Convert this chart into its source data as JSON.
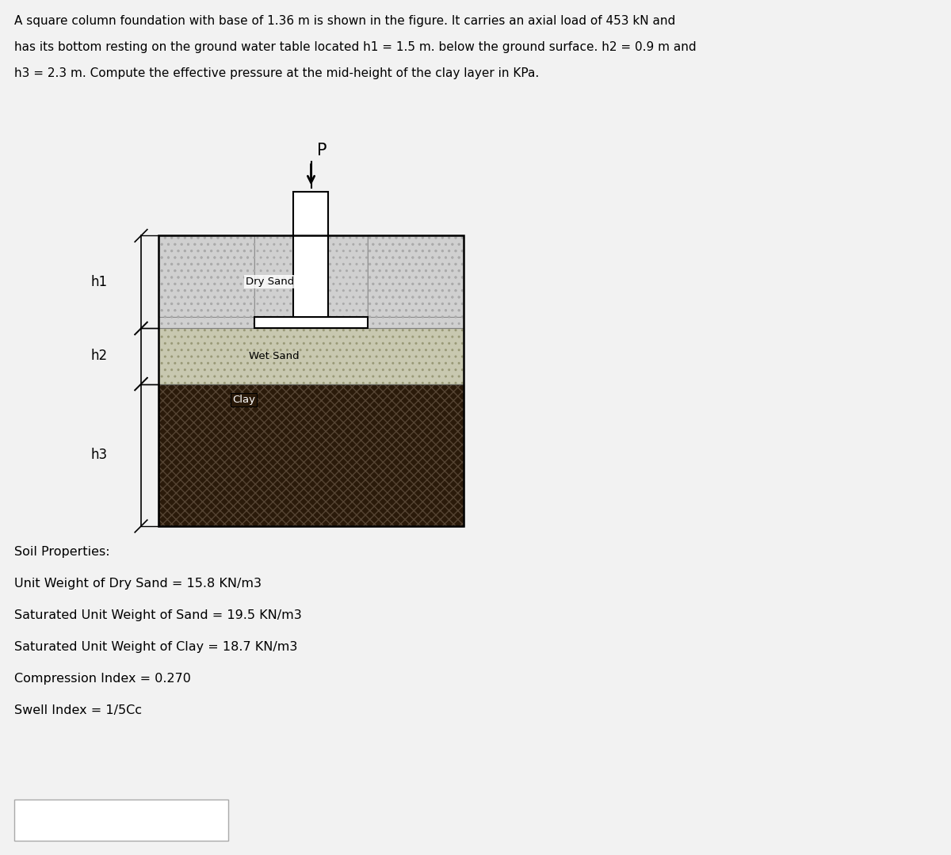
{
  "title_line1": "A square column foundation with base of 1.36 m is shown in the figure. It carries an axial load of 453 kN and",
  "title_line2": "has its bottom resting on the ground water table located h1 = 1.5 m. below the ground surface. h2 = 0.9 m and",
  "title_line3": "h3 = 2.3 m. Compute the effective pressure at the mid-height of the clay layer in KPa.",
  "bg_color": "#f2f2f2",
  "soil_properties_lines": [
    "Soil Properties:",
    "Unit Weight of Dry Sand = 15.8 KN/m3",
    "Saturated Unit Weight of Sand = 19.5 KN/m3",
    "Saturated Unit Weight of Clay = 18.7 KN/m3",
    "Compression Index = 0.270",
    "Swell Index = 1/5Cc"
  ],
  "layer_labels": [
    "Dry Sand",
    "Wet Sand",
    "Clay"
  ],
  "dim_labels": [
    "h1",
    "h2",
    "h3"
  ],
  "load_label": "P",
  "dry_sand_facecolor": "#d0d0d0",
  "wet_sand_facecolor": "#c8c8b0",
  "clay_facecolor": "#2a1a0a",
  "dry_sand_hatch": "..",
  "wet_sand_hatch": "..",
  "clay_hatch": "xxx",
  "hatch_color_dry": "#aaaaaa",
  "hatch_color_wet": "#aaaaaa",
  "hatch_color_clay": "#555555"
}
